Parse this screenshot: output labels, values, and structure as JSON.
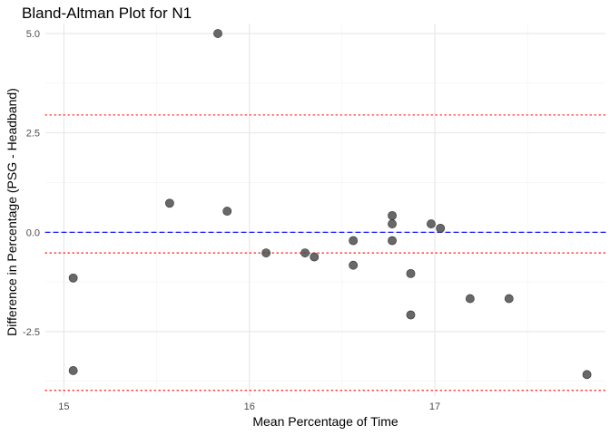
{
  "chart_data": {
    "type": "scatter",
    "title": "Bland-Altman Plot for N1",
    "xlabel": "Mean Percentage of Time",
    "ylabel": "Difference in Percentage (PSG - Headband)",
    "xlim": [
      14.9,
      17.92
    ],
    "ylim": [
      -4.12,
      5.25
    ],
    "x_ticks": [
      {
        "value": 15,
        "label": "15"
      },
      {
        "value": 16,
        "label": "16"
      },
      {
        "value": 17,
        "label": "17"
      }
    ],
    "x_minor_ticks": [
      15.5,
      16.5,
      17.5
    ],
    "y_ticks": [
      {
        "value": 5.0,
        "label": "5.0"
      },
      {
        "value": 2.5,
        "label": "2.5"
      },
      {
        "value": 0.0,
        "label": "0.0"
      },
      {
        "value": -2.5,
        "label": "-2.5"
      }
    ],
    "y_minor_ticks": [
      3.75,
      1.25,
      -1.25,
      -3.75
    ],
    "grid": true,
    "points": [
      {
        "x": 15.05,
        "y": -1.15
      },
      {
        "x": 15.05,
        "y": -3.48
      },
      {
        "x": 15.57,
        "y": 0.73
      },
      {
        "x": 15.83,
        "y": 5.0
      },
      {
        "x": 15.88,
        "y": 0.53
      },
      {
        "x": 16.09,
        "y": -0.52
      },
      {
        "x": 16.3,
        "y": -0.52
      },
      {
        "x": 16.35,
        "y": -0.62
      },
      {
        "x": 16.56,
        "y": -0.21
      },
      {
        "x": 16.56,
        "y": -0.83
      },
      {
        "x": 16.77,
        "y": 0.42
      },
      {
        "x": 16.77,
        "y": 0.21
      },
      {
        "x": 16.77,
        "y": -0.21
      },
      {
        "x": 16.87,
        "y": -1.04
      },
      {
        "x": 16.87,
        "y": -2.08
      },
      {
        "x": 16.98,
        "y": 0.21
      },
      {
        "x": 17.03,
        "y": 0.1
      },
      {
        "x": 17.19,
        "y": -1.67
      },
      {
        "x": 17.4,
        "y": -1.67
      },
      {
        "x": 17.82,
        "y": -3.58
      }
    ],
    "reference_lines": [
      {
        "kind": "mean_difference",
        "y": 0.0,
        "color": "#0000ff",
        "style": "dashed"
      },
      {
        "kind": "upper_limit",
        "y": 2.95,
        "color": "#ff0000",
        "style": "dotted"
      },
      {
        "kind": "lower_limit_1",
        "y": -0.52,
        "color": "#ff0000",
        "style": "dotted"
      },
      {
        "kind": "lower_limit_2",
        "y": -3.98,
        "color": "#ff0000",
        "style": "dotted"
      }
    ],
    "point_color": "#4d4d4d"
  }
}
